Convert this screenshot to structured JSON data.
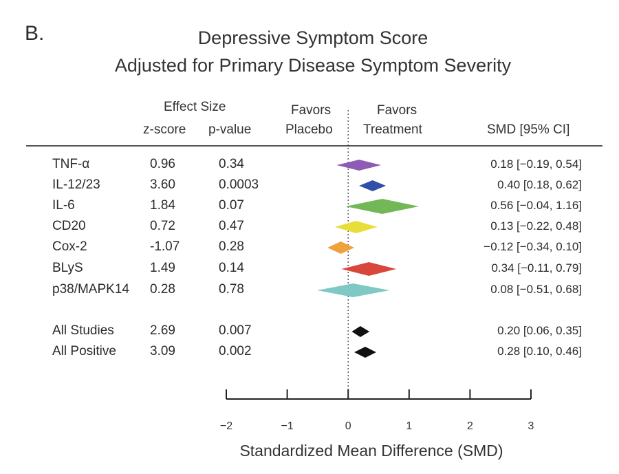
{
  "panel_label": "B.",
  "title_line1": "Depressive Symptom Score",
  "title_line2": "Adjusted for Primary Disease Symptom Severity",
  "headers": {
    "effect_size": "Effect Size",
    "z_score": "z-score",
    "p_value": "p-value",
    "favors_placebo_1": "Favors",
    "favors_placebo_2": "Placebo",
    "favors_treatment_1": "Favors",
    "favors_treatment_2": "Treatment",
    "smd_ci": "SMD [95% CI]"
  },
  "chart_data": {
    "type": "forest",
    "xlabel": "Standardized Mean Difference (SMD)",
    "xlim": [
      -2,
      3
    ],
    "xticks": [
      "−2",
      "−1",
      "0",
      "1",
      "2",
      "3"
    ],
    "reference_line": 0,
    "rows": [
      {
        "label": "TNF-α",
        "z": "0.96",
        "p": "0.34",
        "smd": 0.18,
        "lo": -0.19,
        "hi": 0.54,
        "ci_text": "0.18 [−0.19, 0.54]",
        "color": "#8e5bb5"
      },
      {
        "label": "IL-12/23",
        "z": "3.60",
        "p": "0.0003",
        "smd": 0.4,
        "lo": 0.18,
        "hi": 0.62,
        "ci_text": "0.40 [0.18, 0.62]",
        "color": "#2f4fa8"
      },
      {
        "label": "IL-6",
        "z": "1.84",
        "p": "0.07",
        "smd": 0.56,
        "lo": -0.04,
        "hi": 1.16,
        "ci_text": "0.56 [−0.04, 1.16]",
        "color": "#72b856"
      },
      {
        "label": "CD20",
        "z": "0.72",
        "p": "0.47",
        "smd": 0.13,
        "lo": -0.22,
        "hi": 0.48,
        "ci_text": "0.13 [−0.22, 0.48]",
        "color": "#e8de3a"
      },
      {
        "label": "Cox-2",
        "z": "-1.07",
        "p": "0.28",
        "smd": -0.12,
        "lo": -0.34,
        "hi": 0.1,
        "ci_text": "−0.12 [−0.34, 0.10]",
        "color": "#efa13c"
      },
      {
        "label": "BLyS",
        "z": "1.49",
        "p": "0.14",
        "smd": 0.34,
        "lo": -0.11,
        "hi": 0.79,
        "ci_text": "0.34 [−0.11, 0.79]",
        "color": "#d9473c"
      },
      {
        "label": "p38/MAPK14",
        "z": "0.28",
        "p": "0.78",
        "smd": 0.08,
        "lo": -0.51,
        "hi": 0.68,
        "ci_text": "0.08 [−0.51, 0.68]",
        "color": "#80c8c6"
      },
      {
        "label": "All Studies",
        "z": "2.69",
        "p": "0.007",
        "smd": 0.2,
        "lo": 0.06,
        "hi": 0.35,
        "ci_text": "0.20 [0.06, 0.35]",
        "color": "#111111"
      },
      {
        "label": "All Positive",
        "z": "3.09",
        "p": "0.002",
        "smd": 0.28,
        "lo": 0.1,
        "hi": 0.46,
        "ci_text": "0.28 [0.10, 0.46]",
        "color": "#111111"
      }
    ]
  }
}
